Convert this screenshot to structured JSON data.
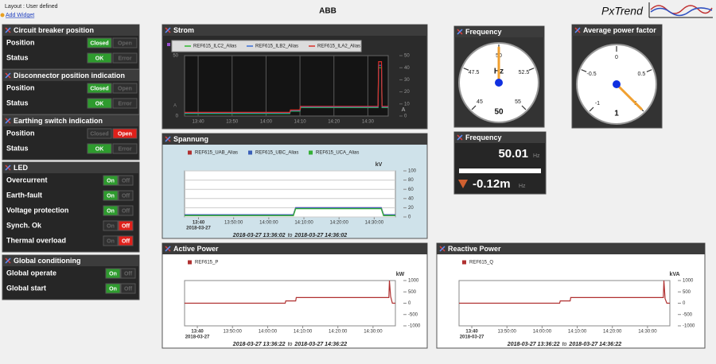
{
  "header": {
    "layout": "Layout : User defined",
    "add_widget": "Add Widget",
    "title": "ABB",
    "logo": "PxTrend"
  },
  "panels": [
    {
      "title": "Circuit breaker position",
      "rows": [
        {
          "label": "Position",
          "buttons": [
            "Closed",
            "Open"
          ],
          "active": 0,
          "active_color": "#2e9b2e"
        },
        {
          "label": "Status",
          "buttons": [
            "OK",
            "Error"
          ],
          "active": 0,
          "active_color": "#2e9b2e"
        }
      ]
    },
    {
      "title": "Disconnector position indication",
      "rows": [
        {
          "label": "Position",
          "buttons": [
            "Closed",
            "Open"
          ],
          "active": 0,
          "active_color": "#2e9b2e"
        },
        {
          "label": "Status",
          "buttons": [
            "OK",
            "Error"
          ],
          "active": 0,
          "active_color": "#2e9b2e"
        }
      ]
    },
    {
      "title": "Earthing switch indication",
      "rows": [
        {
          "label": "Position",
          "buttons": [
            "Closed",
            "Open"
          ],
          "active": 1,
          "active_color": "#e0201a"
        },
        {
          "label": "Status",
          "buttons": [
            "OK",
            "Error"
          ],
          "active": 0,
          "active_color": "#2e9b2e"
        }
      ]
    },
    {
      "title": "LED",
      "rows": [
        {
          "label": "Overcurrent",
          "buttons": [
            "On",
            "Off"
          ],
          "active": 0,
          "active_color": "#2e9b2e"
        },
        {
          "label": "Earth-fault",
          "buttons": [
            "On",
            "Off"
          ],
          "active": 0,
          "active_color": "#2e9b2e"
        },
        {
          "label": "Voltage protection",
          "buttons": [
            "On",
            "Off"
          ],
          "active": 0,
          "active_color": "#2e9b2e"
        },
        {
          "label": "Synch. Ok",
          "buttons": [
            "On",
            "Off"
          ],
          "active": 1,
          "active_color": "#e0201a"
        },
        {
          "label": "Thermal overload",
          "buttons": [
            "On",
            "Off"
          ],
          "active": 1,
          "active_color": "#e0201a"
        }
      ]
    },
    {
      "title": "Global conditioning",
      "rows": [
        {
          "label": "Global operate",
          "buttons": [
            "On",
            "Off"
          ],
          "active": 0,
          "active_color": "#2e9b2e"
        },
        {
          "label": "Global start",
          "buttons": [
            "On",
            "Off"
          ],
          "active": 0,
          "active_color": "#2e9b2e"
        }
      ]
    }
  ],
  "strom": {
    "type": "line",
    "title": "Strom",
    "unit": "A",
    "xlim": [
      "13:36:00",
      "14:36:00"
    ],
    "xticks": [
      "13:40",
      "13:50",
      "14:00",
      "14:10",
      "14:20",
      "14:30"
    ],
    "ylim": [
      0,
      50
    ],
    "yticks": [
      0,
      10,
      20,
      30,
      40,
      50
    ],
    "x": [
      "13:36:00",
      "14:07:00",
      "14:07:10",
      "14:10:00",
      "14:10:10",
      "14:33:00",
      "14:33:10",
      "14:34:00",
      "14:34:10",
      "14:36:00"
    ],
    "series": [
      {
        "name": "REF615_ILC2_Alias",
        "color": "#2eb82e",
        "values": [
          2,
          2,
          4,
          4,
          7,
          7,
          40,
          40,
          7,
          7
        ]
      },
      {
        "name": "REF615_ILB2_Alias",
        "color": "#3a6fd8",
        "values": [
          2.5,
          2.5,
          4.5,
          4.5,
          7.5,
          7.5,
          42,
          42,
          7.5,
          7.5
        ]
      },
      {
        "name": "REF615_ILA2_Alias",
        "color": "#d9302a",
        "values": [
          3,
          3,
          5,
          5,
          8,
          8,
          45,
          45,
          8,
          8
        ]
      }
    ]
  },
  "spannung": {
    "type": "line",
    "title": "Spannung",
    "unit": "kV",
    "grid": true,
    "xlim": [
      "13:36:02",
      "14:36:02"
    ],
    "xticks": [
      {
        "value": "13:40:00",
        "label": "13:40"
      },
      "13:50:00",
      "14:00:00",
      "14:10:00",
      "14:20:00",
      "14:30:00"
    ],
    "x_date": "2018-03-27",
    "ylim": [
      0,
      100
    ],
    "yticks": [
      0,
      20,
      40,
      60,
      80,
      100
    ],
    "x": [
      "13:36:02",
      "14:07:00",
      "14:07:40",
      "14:32:00",
      "14:32:40",
      "14:36:02"
    ],
    "series": [
      {
        "name": "REF615_UAB_Alias",
        "color": "#b03030",
        "values": [
          5,
          5,
          20,
          20,
          5,
          5
        ]
      },
      {
        "name": "REF615_UBC_Alias",
        "color": "#3a5fb8",
        "values": [
          5,
          5,
          20,
          20,
          5,
          5
        ]
      },
      {
        "name": "REF615_UCA_Alias",
        "color": "#35b035",
        "values": [
          3,
          3,
          18,
          18,
          3,
          3
        ]
      }
    ],
    "range_from": "2018-03-27 13:36:02",
    "range_sep": "to",
    "range_to": "2018-03-27 14:36:02"
  },
  "active_power": {
    "type": "line",
    "title": "Active Power",
    "unit": "kW",
    "grid": false,
    "xlim": [
      "13:36:22",
      "14:36:22"
    ],
    "xticks": [
      {
        "value": "13:40:00",
        "label": "13:40"
      },
      "13:50:00",
      "14:00:00",
      "14:10:00",
      "14:20:00",
      "14:30:00"
    ],
    "x_date": "2018-03-27",
    "ylim": [
      -1000,
      1000
    ],
    "yticks": [
      -1000,
      -500,
      0,
      500,
      1000
    ],
    "x": [
      "13:36:22",
      "14:05:00",
      "14:05:10",
      "14:08:00",
      "14:08:10",
      "14:34:30",
      "14:34:40",
      "14:35:00",
      "14:35:30",
      "14:36:22"
    ],
    "series": [
      {
        "name": "REF615_P",
        "color": "#b03030",
        "values": [
          0,
          0,
          100,
          100,
          250,
          250,
          1000,
          300,
          0,
          0
        ]
      }
    ],
    "range_from": "2018-03-27 13:36:22",
    "range_sep": "to",
    "range_to": "2018-03-27 14:36:22"
  },
  "reactive_power": {
    "type": "line",
    "title": "Reactive Power",
    "unit": "kVA",
    "grid": false,
    "xlim": [
      "13:36:22",
      "14:36:22"
    ],
    "xticks": [
      {
        "value": "13:40:00",
        "label": "13:40"
      },
      "13:50:00",
      "14:00:00",
      "14:10:00",
      "14:20:00",
      "14:30:00"
    ],
    "x_date": "2018-03-27",
    "ylim": [
      -1000,
      1000
    ],
    "yticks": [
      -1000,
      -500,
      0,
      500,
      1000
    ],
    "x": [
      "13:36:22",
      "14:05:00",
      "14:05:10",
      "14:08:00",
      "14:08:10",
      "14:34:30",
      "14:34:40",
      "14:35:00",
      "14:35:30",
      "14:36:22"
    ],
    "series": [
      {
        "name": "REF615_Q",
        "color": "#b03030",
        "values": [
          0,
          0,
          100,
          100,
          250,
          250,
          1000,
          200,
          0,
          0
        ]
      }
    ],
    "range_from": "2018-03-27 13:36:22",
    "range_sep": "to",
    "range_to": "2018-03-27 14:36:22"
  },
  "frequency_gauge": {
    "type": "gauge",
    "title": "Frequency",
    "unit": "Hz",
    "lim": [
      45,
      55
    ],
    "ticks": [
      45,
      47.5,
      50,
      52.5,
      55
    ],
    "value": 50
  },
  "power_factor_gauge": {
    "type": "gauge",
    "title": "Average power factor",
    "lim": [
      -1,
      1
    ],
    "ticks": [
      -1,
      -0.5,
      0,
      0.5,
      1
    ],
    "value": 1
  },
  "frequency_display": {
    "title": "Frequency",
    "value": 50.01,
    "unit": "Hz",
    "delta": "-0.12m",
    "delta_unit": "Hz"
  }
}
